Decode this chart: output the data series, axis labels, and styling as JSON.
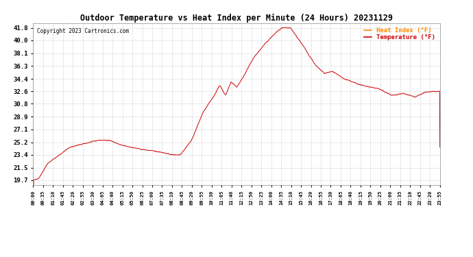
{
  "title": "Outdoor Temperature vs Heat Index per Minute (24 Hours) 20231129",
  "copyright": "Copyright 2023 Cartronics.com",
  "legend_heat": "Heat Index (°F)",
  "legend_temp": "Temperature (°F)",
  "legend_heat_color": "#ff8800",
  "legend_temp_color": "#cc0000",
  "line_color": "#cc0000",
  "title_color": "#000000",
  "copyright_color": "#000000",
  "background_color": "#ffffff",
  "grid_color": "#bbbbbb",
  "yticks": [
    19.7,
    21.5,
    23.4,
    25.2,
    27.1,
    28.9,
    30.8,
    32.6,
    34.4,
    36.3,
    38.1,
    40.0,
    41.8
  ],
  "ylim_min": 19.0,
  "ylim_max": 42.5,
  "xtick_labels": [
    "00:00",
    "00:35",
    "01:10",
    "01:45",
    "02:20",
    "02:55",
    "03:30",
    "04:05",
    "04:40",
    "05:15",
    "05:50",
    "06:25",
    "07:00",
    "07:35",
    "08:10",
    "08:45",
    "09:20",
    "09:55",
    "10:30",
    "11:05",
    "11:40",
    "12:15",
    "12:50",
    "13:25",
    "14:00",
    "14:35",
    "15:10",
    "15:45",
    "16:20",
    "16:55",
    "17:30",
    "18:05",
    "18:40",
    "19:15",
    "19:50",
    "20:25",
    "21:00",
    "21:35",
    "22:10",
    "22:45",
    "23:20",
    "23:55"
  ]
}
